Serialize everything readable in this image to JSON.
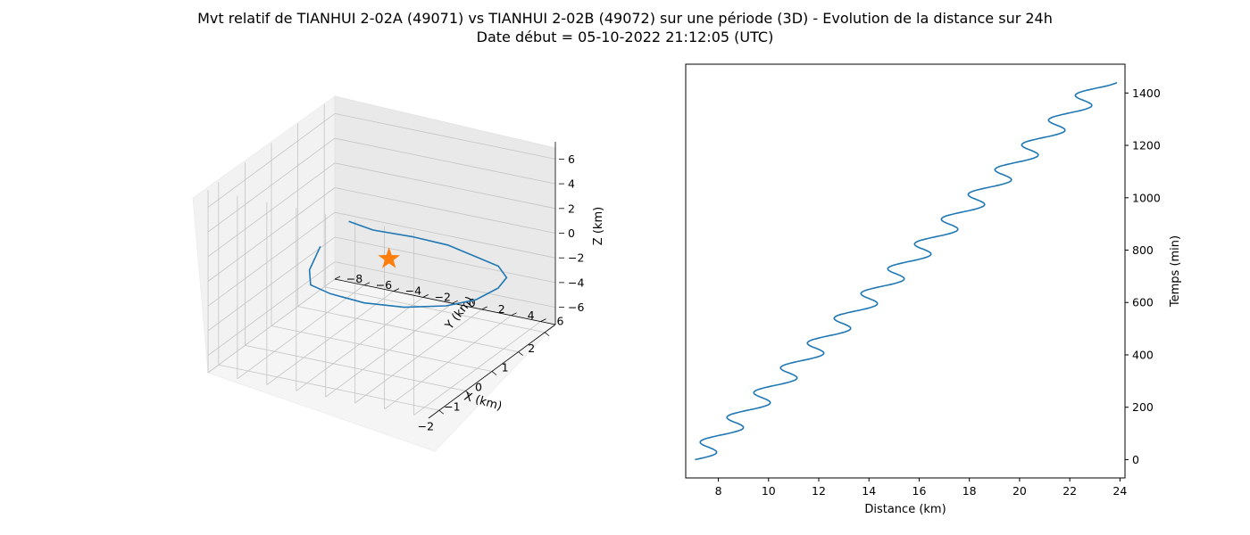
{
  "figure": {
    "title_line1": "Mvt relatif de TIANHUI 2-02A (49071) vs TIANHUI 2-02B (49072) sur une période (3D) - Evolution de la distance sur 24h",
    "title_line2": "Date début = 05-10-2022 21:12:05 (UTC)"
  },
  "colors": {
    "series": "#1f77b4",
    "marker": "#ff7f0e"
  },
  "chart_data": [
    {
      "type": "line3d",
      "xlabel": "X (km)",
      "ylabel": "Y (km)",
      "zlabel": "Z (km)",
      "x_ticks": [
        "−2",
        "−1",
        "0",
        "1",
        "2"
      ],
      "y_ticks": [
        "−8",
        "−6",
        "−4",
        "−2",
        "0",
        "2",
        "4",
        "6"
      ],
      "z_ticks": [
        "−6",
        "−4",
        "−2",
        "0",
        "2",
        "4",
        "6"
      ],
      "xlim": [
        -2.4,
        2.4
      ],
      "ylim": [
        -8,
        7
      ],
      "zlim": [
        -7.4,
        7.4
      ],
      "grid": true,
      "marker": {
        "shape": "star",
        "x": 0,
        "y": 0,
        "z": 0
      },
      "trajectory": {
        "x": [
          -2.25,
          -2.05,
          -1.3,
          -0.45,
          0.4,
          1.3,
          2.0,
          2.35,
          2.3,
          2.0,
          1.3,
          0.45,
          -0.45,
          -1.3,
          -1.9,
          -2.1
        ],
        "y": [
          1.3,
          2.6,
          3.9,
          4.8,
          5.2,
          5.1,
          4.4,
          3.2,
          1.8,
          0.3,
          -1.3,
          -2.5,
          -3.2,
          -3.0,
          -2.0,
          -0.9
        ],
        "z": [
          6.9,
          6.2,
          4.8,
          3.0,
          0.8,
          -1.4,
          -3.6,
          -5.3,
          -6.5,
          -6.9,
          -6.3,
          -4.9,
          -2.9,
          -0.8,
          1.6,
          4.1
        ]
      }
    },
    {
      "type": "line",
      "xlabel": "Distance (km)",
      "ylabel": "Temps (min)",
      "xlim": [
        6.7,
        24.2
      ],
      "ylim": [
        -70,
        1510
      ],
      "x_ticks": [
        8,
        10,
        12,
        14,
        16,
        18,
        20,
        22,
        24
      ],
      "y_ticks": [
        0,
        200,
        400,
        600,
        800,
        1000,
        1200,
        1400
      ],
      "y_axis_position": "right",
      "grid": false,
      "series": {
        "t_start": 0,
        "t_end": 1440,
        "d_start": 7.07,
        "d_end": 23.32,
        "oscillation_amplitude_km": 0.57,
        "oscillation_period_min": 94.6,
        "points": [
          [
            0,
            7.07
          ],
          [
            200,
            9.33
          ],
          [
            400,
            11.58
          ],
          [
            600,
            13.84
          ],
          [
            800,
            16.1
          ],
          [
            1000,
            18.36
          ],
          [
            1200,
            20.61
          ],
          [
            1400,
            22.87
          ],
          [
            1440,
            23.32
          ]
        ]
      }
    }
  ]
}
